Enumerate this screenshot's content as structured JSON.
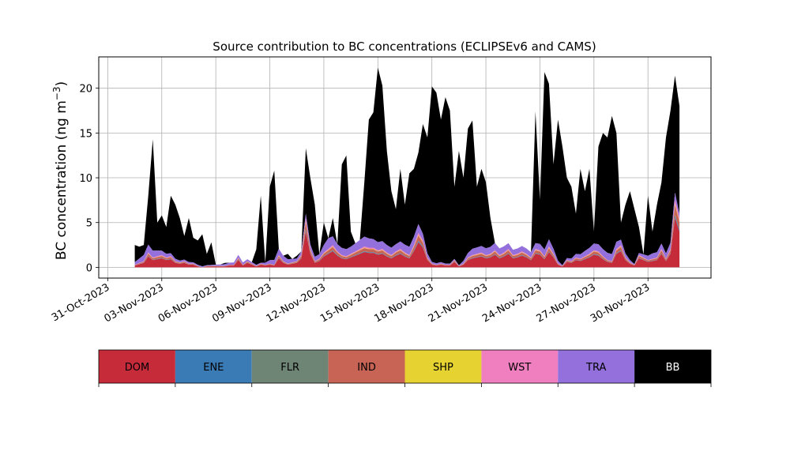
{
  "chart_data": {
    "type": "area",
    "stacked": true,
    "title": "Source contribution to BC concentrations (ECLIPSEv6 and CAMS)",
    "ylabel_main": "BC concentration (ng m",
    "ylabel_sup": "−3",
    "ylabel_close": ")",
    "xlabel": "",
    "xlim": [
      "2023-10-30T12:00",
      "2023-12-03T12:00"
    ],
    "ylim": [
      -1.2,
      23.5
    ],
    "yticks": [
      0,
      5,
      10,
      15,
      20
    ],
    "xticks": [
      "31-Oct-2023",
      "03-Nov-2023",
      "06-Nov-2023",
      "09-Nov-2023",
      "12-Nov-2023",
      "15-Nov-2023",
      "18-Nov-2023",
      "21-Nov-2023",
      "24-Nov-2023",
      "27-Nov-2023",
      "30-Nov-2023"
    ],
    "xtick_dates": [
      "2023-10-31",
      "2023-11-03",
      "2023-11-06",
      "2023-11-09",
      "2023-11-12",
      "2023-11-15",
      "2023-11-18",
      "2023-11-21",
      "2023-11-24",
      "2023-11-27",
      "2023-11-30"
    ],
    "grid": true,
    "legend_position": "below",
    "series_order": [
      "DOM",
      "ENE",
      "FLR",
      "IND",
      "SHP",
      "WST",
      "TRA",
      "BB"
    ],
    "colors": {
      "DOM": "#c62b3a",
      "ENE": "#3a7ab5",
      "FLR": "#6e8474",
      "IND": "#c86455",
      "SHP": "#e6d231",
      "WST": "#f07fbf",
      "TRA": "#9370db",
      "BB": "#000000"
    },
    "legend_text_colors": {
      "DOM": "#000000",
      "ENE": "#000000",
      "FLR": "#000000",
      "IND": "#000000",
      "SHP": "#000000",
      "WST": "#000000",
      "TRA": "#000000",
      "BB": "#ffffff"
    },
    "dom": [
      [
        "2023-11-01T12:00",
        0.2
      ],
      [
        "2023-11-02T00:00",
        0.5
      ],
      [
        "2023-11-02T06:00",
        1.2
      ],
      [
        "2023-11-02T12:00",
        0.8
      ],
      [
        "2023-11-02T18:00",
        0.9
      ],
      [
        "2023-11-03T00:00",
        1.0
      ],
      [
        "2023-11-03T06:00",
        0.8
      ],
      [
        "2023-11-03T12:00",
        0.9
      ],
      [
        "2023-11-03T18:00",
        0.5
      ],
      [
        "2023-11-04T00:00",
        0.4
      ],
      [
        "2023-11-04T06:00",
        0.5
      ],
      [
        "2023-11-04T12:00",
        0.3
      ],
      [
        "2023-11-04T18:00",
        0.3
      ],
      [
        "2023-11-05T00:00",
        0.1
      ],
      [
        "2023-11-05T06:00",
        0.0
      ],
      [
        "2023-11-05T12:00",
        0.1
      ],
      [
        "2023-11-05T18:00",
        0.1
      ],
      [
        "2023-11-06T00:00",
        0.1
      ],
      [
        "2023-11-06T06:00",
        0.1
      ],
      [
        "2023-11-06T12:00",
        0.1
      ],
      [
        "2023-11-06T18:00",
        0.2
      ],
      [
        "2023-11-07T00:00",
        0.2
      ],
      [
        "2023-11-07T06:00",
        0.8
      ],
      [
        "2023-11-07T12:00",
        0.2
      ],
      [
        "2023-11-07T18:00",
        0.5
      ],
      [
        "2023-11-08T00:00",
        0.3
      ],
      [
        "2023-11-08T06:00",
        0.1
      ],
      [
        "2023-11-08T12:00",
        0.3
      ],
      [
        "2023-11-08T18:00",
        0.2
      ],
      [
        "2023-11-09T00:00",
        0.3
      ],
      [
        "2023-11-09T06:00",
        0.2
      ],
      [
        "2023-11-09T12:00",
        1.0
      ],
      [
        "2023-11-09T18:00",
        0.5
      ],
      [
        "2023-11-10T00:00",
        0.3
      ],
      [
        "2023-11-10T06:00",
        0.4
      ],
      [
        "2023-11-10T12:00",
        0.5
      ],
      [
        "2023-11-10T18:00",
        1.0
      ],
      [
        "2023-11-11T00:00",
        4.0
      ],
      [
        "2023-11-11T06:00",
        1.5
      ],
      [
        "2023-11-11T12:00",
        0.5
      ],
      [
        "2023-11-11T18:00",
        0.7
      ],
      [
        "2023-11-12T00:00",
        1.2
      ],
      [
        "2023-11-12T06:00",
        1.5
      ],
      [
        "2023-11-12T12:00",
        1.8
      ],
      [
        "2023-11-12T18:00",
        1.3
      ],
      [
        "2023-11-13T00:00",
        1.0
      ],
      [
        "2023-11-13T06:00",
        0.9
      ],
      [
        "2023-11-13T12:00",
        1.1
      ],
      [
        "2023-11-13T18:00",
        1.3
      ],
      [
        "2023-11-14T00:00",
        1.5
      ],
      [
        "2023-11-14T06:00",
        1.7
      ],
      [
        "2023-11-14T12:00",
        1.6
      ],
      [
        "2023-11-14T18:00",
        1.6
      ],
      [
        "2023-11-15T00:00",
        1.4
      ],
      [
        "2023-11-15T06:00",
        1.5
      ],
      [
        "2023-11-15T12:00",
        1.2
      ],
      [
        "2023-11-15T18:00",
        1.0
      ],
      [
        "2023-11-16T00:00",
        1.3
      ],
      [
        "2023-11-16T06:00",
        1.5
      ],
      [
        "2023-11-16T12:00",
        1.2
      ],
      [
        "2023-11-16T18:00",
        1.0
      ],
      [
        "2023-11-17T00:00",
        1.8
      ],
      [
        "2023-11-17T06:00",
        2.8
      ],
      [
        "2023-11-17T12:00",
        2.2
      ],
      [
        "2023-11-17T18:00",
        0.8
      ],
      [
        "2023-11-18T00:00",
        0.3
      ],
      [
        "2023-11-18T06:00",
        0.2
      ],
      [
        "2023-11-18T12:00",
        0.3
      ],
      [
        "2023-11-18T18:00",
        0.2
      ],
      [
        "2023-11-19T00:00",
        0.2
      ],
      [
        "2023-11-19T06:00",
        0.6
      ],
      [
        "2023-11-19T12:00",
        0.1
      ],
      [
        "2023-11-19T18:00",
        0.3
      ],
      [
        "2023-11-20T00:00",
        0.8
      ],
      [
        "2023-11-20T06:00",
        1.0
      ],
      [
        "2023-11-20T12:00",
        1.1
      ],
      [
        "2023-11-20T18:00",
        1.2
      ],
      [
        "2023-11-21T00:00",
        1.0
      ],
      [
        "2023-11-21T06:00",
        1.1
      ],
      [
        "2023-11-21T12:00",
        1.4
      ],
      [
        "2023-11-21T18:00",
        1.0
      ],
      [
        "2023-11-22T00:00",
        1.2
      ],
      [
        "2023-11-22T06:00",
        1.5
      ],
      [
        "2023-11-22T12:00",
        1.0
      ],
      [
        "2023-11-22T18:00",
        1.1
      ],
      [
        "2023-11-23T00:00",
        1.3
      ],
      [
        "2023-11-23T06:00",
        1.1
      ],
      [
        "2023-11-23T12:00",
        0.8
      ],
      [
        "2023-11-23T18:00",
        1.5
      ],
      [
        "2023-11-24T00:00",
        1.4
      ],
      [
        "2023-11-24T06:00",
        0.9
      ],
      [
        "2023-11-24T12:00",
        1.7
      ],
      [
        "2023-11-24T18:00",
        1.1
      ],
      [
        "2023-11-25T00:00",
        0.3
      ],
      [
        "2023-11-25T06:00",
        0.1
      ],
      [
        "2023-11-25T12:00",
        0.6
      ],
      [
        "2023-11-25T18:00",
        0.5
      ],
      [
        "2023-11-26T00:00",
        0.8
      ],
      [
        "2023-11-26T06:00",
        0.7
      ],
      [
        "2023-11-26T12:00",
        0.9
      ],
      [
        "2023-11-26T18:00",
        1.1
      ],
      [
        "2023-11-27T00:00",
        1.4
      ],
      [
        "2023-11-27T06:00",
        1.3
      ],
      [
        "2023-11-27T12:00",
        0.9
      ],
      [
        "2023-11-27T18:00",
        0.6
      ],
      [
        "2023-11-28T00:00",
        0.5
      ],
      [
        "2023-11-28T06:00",
        1.5
      ],
      [
        "2023-11-28T12:00",
        1.8
      ],
      [
        "2023-11-28T18:00",
        0.8
      ],
      [
        "2023-11-29T00:00",
        0.4
      ],
      [
        "2023-11-29T06:00",
        0.2
      ],
      [
        "2023-11-29T12:00",
        1.0
      ],
      [
        "2023-11-29T18:00",
        0.8
      ],
      [
        "2023-11-30T00:00",
        0.6
      ],
      [
        "2023-11-30T06:00",
        0.7
      ],
      [
        "2023-11-30T12:00",
        0.8
      ],
      [
        "2023-11-30T18:00",
        1.5
      ],
      [
        "2023-12-01T00:00",
        0.7
      ],
      [
        "2023-12-01T06:00",
        1.5
      ],
      [
        "2023-12-01T12:00",
        5.5
      ],
      [
        "2023-12-01T18:00",
        4.0
      ]
    ],
    "ene_frac": 0.04,
    "flr_frac": 0.02,
    "ind_frac": 0.2,
    "shp_frac": 0.03,
    "wst_frac": 0.08,
    "tra": [
      [
        "2023-11-01T12:00",
        0.3
      ],
      [
        "2023-11-02T06:00",
        0.9
      ],
      [
        "2023-11-03T00:00",
        0.5
      ],
      [
        "2023-11-04T00:00",
        0.2
      ],
      [
        "2023-11-05T12:00",
        0.1
      ],
      [
        "2023-11-07T06:00",
        0.3
      ],
      [
        "2023-11-08T12:00",
        0.1
      ],
      [
        "2023-11-09T12:00",
        0.7
      ],
      [
        "2023-11-10T12:00",
        0.3
      ],
      [
        "2023-11-11T00:00",
        0.5
      ],
      [
        "2023-11-11T18:00",
        0.5
      ],
      [
        "2023-11-12T06:00",
        1.2
      ],
      [
        "2023-11-12T18:00",
        0.8
      ],
      [
        "2023-11-13T12:00",
        0.8
      ],
      [
        "2023-11-14T06:00",
        1.1
      ],
      [
        "2023-11-15T00:00",
        0.9
      ],
      [
        "2023-11-16T00:00",
        0.8
      ],
      [
        "2023-11-17T06:00",
        1.0
      ],
      [
        "2023-11-18T00:00",
        0.2
      ],
      [
        "2023-11-19T12:00",
        0.1
      ],
      [
        "2023-11-20T06:00",
        0.7
      ],
      [
        "2023-11-21T12:00",
        0.8
      ],
      [
        "2023-11-22T12:00",
        0.6
      ],
      [
        "2023-11-23T12:00",
        0.6
      ],
      [
        "2023-11-24T12:00",
        0.8
      ],
      [
        "2023-11-25T06:00",
        0.1
      ],
      [
        "2023-11-26T12:00",
        0.6
      ],
      [
        "2023-11-27T06:00",
        0.8
      ],
      [
        "2023-11-28T06:00",
        0.8
      ],
      [
        "2023-11-29T06:00",
        0.1
      ],
      [
        "2023-11-30T06:00",
        0.6
      ],
      [
        "2023-12-01T00:00",
        0.6
      ],
      [
        "2023-12-01T12:00",
        0.8
      ],
      [
        "2023-12-01T18:00",
        0.5
      ]
    ],
    "total": [
      [
        "2023-11-01T12:00",
        2.5
      ],
      [
        "2023-11-01T18:00",
        2.3
      ],
      [
        "2023-11-02T00:00",
        2.5
      ],
      [
        "2023-11-02T06:00",
        8.0
      ],
      [
        "2023-11-02T12:00",
        14.3
      ],
      [
        "2023-11-02T18:00",
        5.0
      ],
      [
        "2023-11-03T00:00",
        5.8
      ],
      [
        "2023-11-03T06:00",
        4.5
      ],
      [
        "2023-11-03T12:00",
        8.0
      ],
      [
        "2023-11-03T18:00",
        7.0
      ],
      [
        "2023-11-04T00:00",
        5.5
      ],
      [
        "2023-11-04T06:00",
        3.5
      ],
      [
        "2023-11-04T12:00",
        5.5
      ],
      [
        "2023-11-04T18:00",
        3.3
      ],
      [
        "2023-11-05T00:00",
        3.0
      ],
      [
        "2023-11-05T06:00",
        3.7
      ],
      [
        "2023-11-05T12:00",
        1.5
      ],
      [
        "2023-11-05T18:00",
        2.8
      ],
      [
        "2023-11-06T00:00",
        0.3
      ],
      [
        "2023-11-06T06:00",
        0.2
      ],
      [
        "2023-11-06T12:00",
        0.5
      ],
      [
        "2023-11-06T18:00",
        0.3
      ],
      [
        "2023-11-07T00:00",
        0.4
      ],
      [
        "2023-11-07T06:00",
        0.6
      ],
      [
        "2023-11-07T12:00",
        0.3
      ],
      [
        "2023-11-07T18:00",
        0.5
      ],
      [
        "2023-11-08T00:00",
        0.5
      ],
      [
        "2023-11-08T06:00",
        2.0
      ],
      [
        "2023-11-08T12:00",
        8.0
      ],
      [
        "2023-11-08T18:00",
        0.5
      ],
      [
        "2023-11-09T00:00",
        9.0
      ],
      [
        "2023-11-09T06:00",
        10.8
      ],
      [
        "2023-11-09T12:00",
        1.0
      ],
      [
        "2023-11-09T18:00",
        0.5
      ],
      [
        "2023-11-10T00:00",
        1.5
      ],
      [
        "2023-11-10T06:00",
        0.8
      ],
      [
        "2023-11-10T12:00",
        1.3
      ],
      [
        "2023-11-10T18:00",
        1.0
      ],
      [
        "2023-11-11T00:00",
        13.3
      ],
      [
        "2023-11-11T06:00",
        10.0
      ],
      [
        "2023-11-11T12:00",
        7.0
      ],
      [
        "2023-11-11T18:00",
        0.5
      ],
      [
        "2023-11-12T00:00",
        5.0
      ],
      [
        "2023-11-12T06:00",
        3.0
      ],
      [
        "2023-11-12T12:00",
        5.5
      ],
      [
        "2023-11-12T18:00",
        2.0
      ],
      [
        "2023-11-13T00:00",
        11.5
      ],
      [
        "2023-11-13T06:00",
        12.5
      ],
      [
        "2023-11-13T12:00",
        4.0
      ],
      [
        "2023-11-13T18:00",
        1.5
      ],
      [
        "2023-11-14T00:00",
        1.5
      ],
      [
        "2023-11-14T06:00",
        9.5
      ],
      [
        "2023-11-14T12:00",
        16.5
      ],
      [
        "2023-11-14T18:00",
        17.3
      ],
      [
        "2023-11-15T00:00",
        22.3
      ],
      [
        "2023-11-15T06:00",
        20.3
      ],
      [
        "2023-11-15T12:00",
        13.0
      ],
      [
        "2023-11-15T18:00",
        8.5
      ],
      [
        "2023-11-16T00:00",
        6.5
      ],
      [
        "2023-11-16T06:00",
        11.0
      ],
      [
        "2023-11-16T12:00",
        7.0
      ],
      [
        "2023-11-16T18:00",
        10.5
      ],
      [
        "2023-11-17T00:00",
        11.0
      ],
      [
        "2023-11-17T06:00",
        12.8
      ],
      [
        "2023-11-17T12:00",
        16.0
      ],
      [
        "2023-11-17T18:00",
        14.5
      ],
      [
        "2023-11-18T00:00",
        20.2
      ],
      [
        "2023-11-18T06:00",
        19.5
      ],
      [
        "2023-11-18T12:00",
        16.5
      ],
      [
        "2023-11-18T18:00",
        19.0
      ],
      [
        "2023-11-19T00:00",
        17.5
      ],
      [
        "2023-11-19T06:00",
        9.0
      ],
      [
        "2023-11-19T12:00",
        13.0
      ],
      [
        "2023-11-19T18:00",
        10.0
      ],
      [
        "2023-11-20T00:00",
        15.5
      ],
      [
        "2023-11-20T06:00",
        16.4
      ],
      [
        "2023-11-20T12:00",
        9.0
      ],
      [
        "2023-11-20T18:00",
        11.0
      ],
      [
        "2023-11-21T00:00",
        9.5
      ],
      [
        "2023-11-21T06:00",
        5.5
      ],
      [
        "2023-11-21T12:00",
        2.0
      ],
      [
        "2023-11-21T18:00",
        1.0
      ],
      [
        "2023-11-22T00:00",
        0.5
      ],
      [
        "2023-11-22T06:00",
        0.3
      ],
      [
        "2023-11-22T12:00",
        0.6
      ],
      [
        "2023-11-22T18:00",
        0.3
      ],
      [
        "2023-11-23T00:00",
        1.8
      ],
      [
        "2023-11-23T06:00",
        0.5
      ],
      [
        "2023-11-23T12:00",
        1.0
      ],
      [
        "2023-11-23T18:00",
        17.4
      ],
      [
        "2023-11-24T00:00",
        7.5
      ],
      [
        "2023-11-24T06:00",
        21.8
      ],
      [
        "2023-11-24T12:00",
        20.5
      ],
      [
        "2023-11-24T18:00",
        11.5
      ],
      [
        "2023-11-25T00:00",
        16.5
      ],
      [
        "2023-11-25T06:00",
        13.5
      ],
      [
        "2023-11-25T12:00",
        10.0
      ],
      [
        "2023-11-25T18:00",
        9.0
      ],
      [
        "2023-11-26T00:00",
        6.0
      ],
      [
        "2023-11-26T06:00",
        11.0
      ],
      [
        "2023-11-26T12:00",
        8.5
      ],
      [
        "2023-11-26T18:00",
        11.0
      ],
      [
        "2023-11-27T00:00",
        4.0
      ],
      [
        "2023-11-27T06:00",
        13.5
      ],
      [
        "2023-11-27T12:00",
        15.0
      ],
      [
        "2023-11-27T18:00",
        14.5
      ],
      [
        "2023-11-28T00:00",
        16.9
      ],
      [
        "2023-11-28T06:00",
        15.0
      ],
      [
        "2023-11-28T12:00",
        5.0
      ],
      [
        "2023-11-28T18:00",
        7.0
      ],
      [
        "2023-11-29T00:00",
        8.5
      ],
      [
        "2023-11-29T06:00",
        6.5
      ],
      [
        "2023-11-29T12:00",
        4.5
      ],
      [
        "2023-11-29T18:00",
        0.5
      ],
      [
        "2023-11-30T00:00",
        8.0
      ],
      [
        "2023-11-30T06:00",
        4.0
      ],
      [
        "2023-11-30T12:00",
        7.0
      ],
      [
        "2023-11-30T18:00",
        9.5
      ],
      [
        "2023-12-01T00:00",
        14.5
      ],
      [
        "2023-12-01T06:00",
        17.5
      ],
      [
        "2023-12-01T12:00",
        21.4
      ],
      [
        "2023-12-01T18:00",
        18.0
      ]
    ]
  },
  "legend": [
    {
      "key": "DOM"
    },
    {
      "key": "ENE"
    },
    {
      "key": "FLR"
    },
    {
      "key": "IND"
    },
    {
      "key": "SHP"
    },
    {
      "key": "WST"
    },
    {
      "key": "TRA"
    },
    {
      "key": "BB"
    }
  ]
}
